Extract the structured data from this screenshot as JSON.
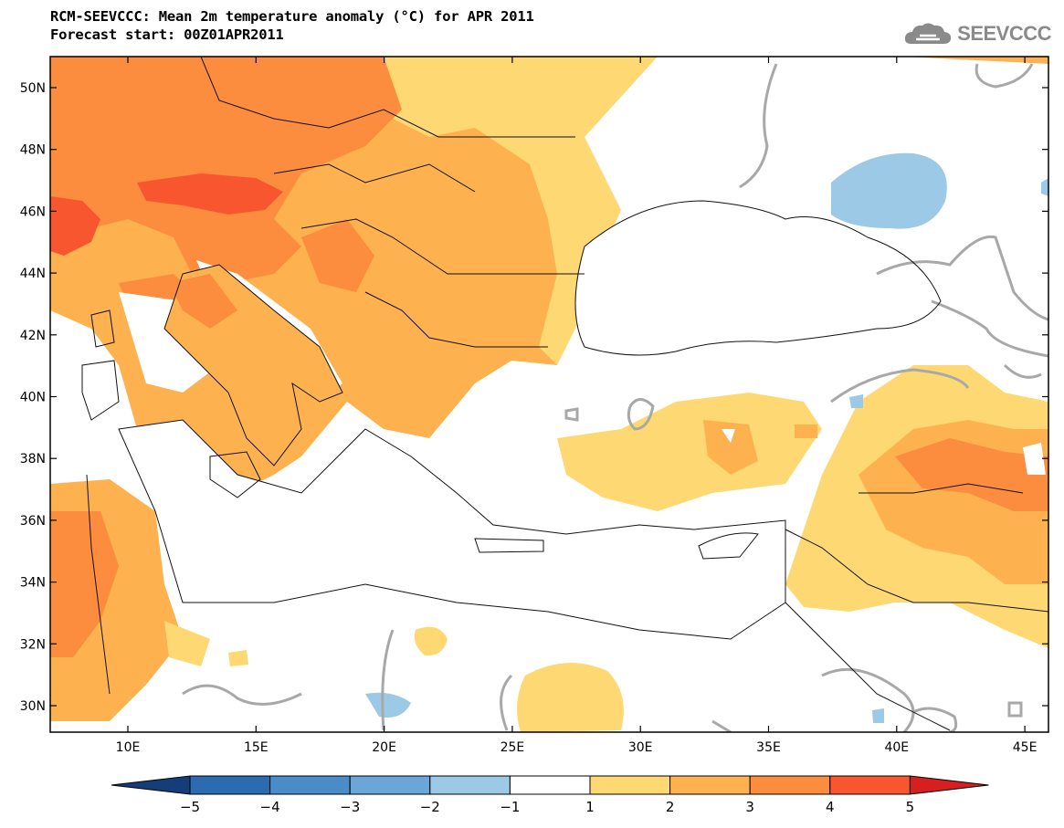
{
  "title": {
    "line1": "RCM-SEEVCCC: Mean 2m temperature anomaly (°C) for APR 2011",
    "line2": "Forecast start: 00Z01APR2011"
  },
  "logo": {
    "text": "SEEVCCC",
    "icon": "cloud-icon"
  },
  "map": {
    "lat_ticks": [
      "50N",
      "48N",
      "46N",
      "44N",
      "42N",
      "40N",
      "38N",
      "36N",
      "34N",
      "32N",
      "30N"
    ],
    "lon_ticks": [
      "10E",
      "15E",
      "20E",
      "25E",
      "30E",
      "35E",
      "40E",
      "45E"
    ]
  },
  "colorbar": {
    "labels": [
      "−5",
      "−4",
      "−3",
      "−2",
      "−1",
      "1",
      "2",
      "3",
      "4",
      "5"
    ],
    "colors": [
      "#143d7a",
      "#2b6bb0",
      "#4a8cc8",
      "#6aa6d8",
      "#9cc9e6",
      "#ffffff",
      "#fdd873",
      "#fdb14f",
      "#fc8c3e",
      "#f7562e",
      "#d6201f"
    ]
  }
}
